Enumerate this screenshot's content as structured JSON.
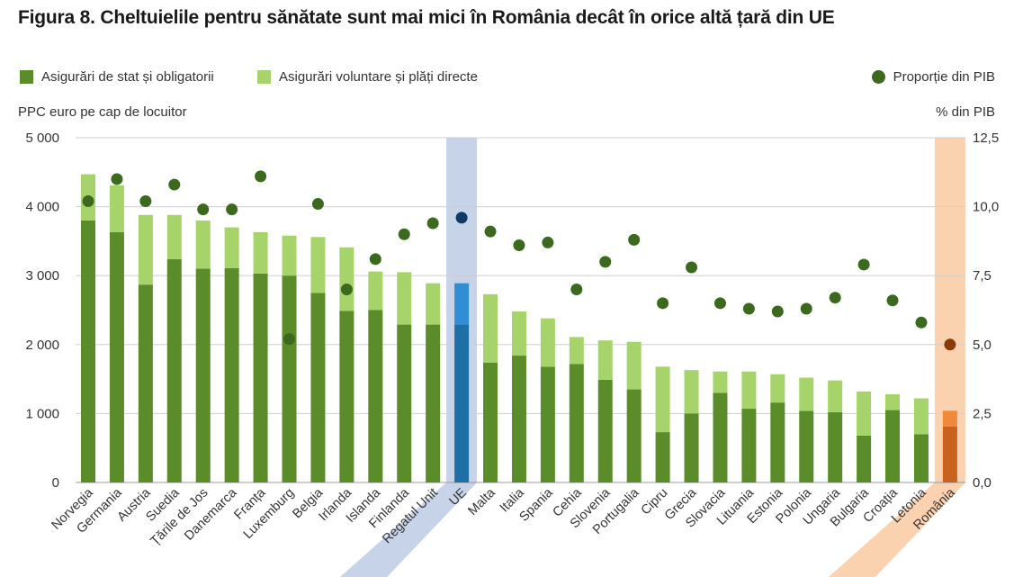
{
  "title": "Figura 8. Cheltuielile pentru sănătate sunt mai mici în România decât în orice altă țară din UE",
  "legend": {
    "public": "Asigurări de stat și obligatorii",
    "private": "Asigurări voluntare și plăți directe",
    "gdp": "Proporție din PIB"
  },
  "chart_data": {
    "type": "bar",
    "stacked": true,
    "title": "Figura 8. Cheltuielile pentru sănătate sunt mai mici în România decât în orice altă țară din UE",
    "ylabel": "PPC euro pe cap de locuitor",
    "y2label": "% din PIB",
    "ylim": [
      0,
      5000
    ],
    "y2lim": [
      0,
      12.5
    ],
    "yticks": [
      "0",
      "1 000",
      "2 000",
      "3 000",
      "4 000",
      "5 000"
    ],
    "y2ticks": [
      "0,0",
      "2,5",
      "5,0",
      "7,5",
      "10,0",
      "12,5"
    ],
    "grid": true,
    "legend_position": "top",
    "highlight": {
      "UE": "blue",
      "România": "orange"
    },
    "categories": [
      "Norvegia",
      "Germania",
      "Austria",
      "Suedia",
      "Țările de Jos",
      "Danemarca",
      "Franța",
      "Luxemburg",
      "Belgia",
      "Irlanda",
      "Islanda",
      "Finlanda",
      "Regatul Unit",
      "UE",
      "Malta",
      "Italia",
      "Spania",
      "Cehia",
      "Slovenia",
      "Portugalia",
      "Cipru",
      "Grecia",
      "Slovacia",
      "Lituania",
      "Estonia",
      "Polonia",
      "Ungaria",
      "Bulgaria",
      "Croația",
      "Letonia",
      "România"
    ],
    "series": [
      {
        "name": "Asigurări de stat și obligatorii",
        "values": [
          3800,
          3630,
          2870,
          3240,
          3100,
          3110,
          3030,
          3000,
          2750,
          2490,
          2500,
          2290,
          2290,
          2290,
          1740,
          1840,
          1680,
          1720,
          1490,
          1350,
          730,
          1000,
          1300,
          1070,
          1160,
          1040,
          1020,
          680,
          1050,
          700,
          810
        ]
      },
      {
        "name": "Asigurări voluntare și plăți directe",
        "values": [
          670,
          680,
          1010,
          640,
          700,
          590,
          600,
          580,
          810,
          920,
          560,
          760,
          600,
          600,
          990,
          640,
          700,
          390,
          570,
          690,
          950,
          630,
          310,
          540,
          410,
          480,
          460,
          640,
          230,
          520,
          230
        ]
      }
    ],
    "gdp_share": {
      "name": "Proporție din PIB",
      "values": [
        10.2,
        11.0,
        10.2,
        10.8,
        9.9,
        9.9,
        11.1,
        5.2,
        10.1,
        7.0,
        8.1,
        9.0,
        9.4,
        9.6,
        9.1,
        8.6,
        8.7,
        7.0,
        8.0,
        8.8,
        6.5,
        7.8,
        6.5,
        6.3,
        6.2,
        6.3,
        6.7,
        7.9,
        6.6,
        5.8,
        5.0
      ]
    },
    "colors": {
      "public": "#5b8c2a",
      "private": "#a6d46a",
      "dot": "#3b6a1e",
      "eu_public": "#1d6fa6",
      "eu_private": "#2f8ed4",
      "eu_dot": "#0d3b66",
      "eu_band": "#c6d3e8",
      "ro_public": "#c8621e",
      "ro_private": "#f08a3a",
      "ro_dot": "#8a3a0a",
      "ro_band": "#fbd2b0",
      "grid": "#cfcfcf"
    }
  }
}
